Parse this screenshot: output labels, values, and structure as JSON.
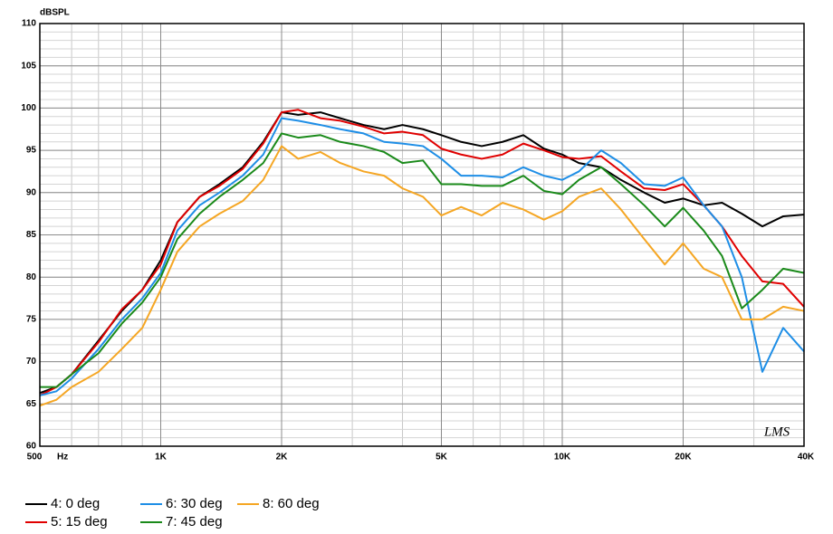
{
  "chart_data": {
    "type": "line",
    "y_label": "dBSPL",
    "x_label": "Hz",
    "annotation": "LMS",
    "x_scale": "log",
    "grid": true,
    "minor_grid": true,
    "legend": "bottom",
    "xlim": [
      500,
      40000
    ],
    "ylim": [
      60,
      110
    ],
    "xticks": [
      {
        "value": 500,
        "label": "500"
      },
      {
        "value": 1000,
        "label": "1K"
      },
      {
        "value": 2000,
        "label": "2K"
      },
      {
        "value": 5000,
        "label": "5K"
      },
      {
        "value": 10000,
        "label": "10K"
      },
      {
        "value": 20000,
        "label": "20K"
      },
      {
        "value": 40000,
        "label": "40K"
      }
    ],
    "yticks": [
      60,
      65,
      70,
      75,
      80,
      85,
      90,
      95,
      100,
      105,
      110
    ],
    "x": [
      500,
      550,
      600,
      700,
      800,
      900,
      1000,
      1100,
      1250,
      1400,
      1600,
      1800,
      2000,
      2200,
      2500,
      2800,
      3200,
      3600,
      4000,
      4500,
      5000,
      5600,
      6300,
      7100,
      8000,
      9000,
      10000,
      11000,
      12500,
      14000,
      16000,
      18000,
      20000,
      22500,
      25000,
      28000,
      31500,
      35500,
      40000
    ],
    "series": [
      {
        "name": "4: 0 deg",
        "color": "#000000",
        "values": [
          66.3,
          67,
          68.5,
          72.5,
          76,
          78.5,
          82,
          86.5,
          89.5,
          91,
          93,
          96,
          99.5,
          99.2,
          99.5,
          98.8,
          98,
          97.5,
          98,
          97.5,
          96.8,
          96,
          95.5,
          96,
          96.8,
          95.2,
          94.5,
          93.5,
          93,
          91.5,
          90,
          88.8,
          89.3,
          88.5,
          88.8,
          87.5,
          86,
          87.2,
          87.4
        ]
      },
      {
        "name": "5: 15 deg",
        "color": "#e00000",
        "values": [
          66,
          67,
          68.5,
          72.3,
          76.2,
          78.5,
          81.5,
          86.5,
          89.5,
          90.8,
          92.8,
          95.8,
          99.5,
          99.8,
          98.8,
          98.5,
          97.8,
          97,
          97.2,
          96.8,
          95.2,
          94.5,
          94,
          94.5,
          95.8,
          95,
          94.2,
          94,
          94.3,
          92.5,
          90.5,
          90.3,
          91,
          88.5,
          86,
          82.5,
          79.5,
          79.2,
          76.5
        ]
      },
      {
        "name": "6: 30 deg",
        "color": "#1e8ee6",
        "values": [
          66,
          66.5,
          68,
          71.5,
          75,
          77.5,
          80.5,
          85.5,
          88.5,
          90,
          92,
          94.5,
          98.8,
          98.5,
          98,
          97.5,
          97,
          96,
          95.8,
          95.5,
          94,
          92,
          92,
          91.8,
          93,
          92,
          91.5,
          92.5,
          95,
          93.5,
          91,
          90.8,
          91.8,
          88.5,
          86,
          80,
          68.8,
          74,
          71.2
        ]
      },
      {
        "name": "7: 45 deg",
        "color": "#1a8a1a",
        "values": [
          67,
          67,
          68.5,
          71,
          74.5,
          77,
          80,
          84.5,
          87.5,
          89.5,
          91.5,
          93.5,
          97,
          96.5,
          96.8,
          96,
          95.5,
          94.8,
          93.5,
          93.8,
          91,
          91,
          90.8,
          90.8,
          92,
          90.2,
          89.8,
          91.5,
          93,
          91,
          88.5,
          86,
          88.2,
          85.5,
          82.5,
          76.3,
          78.5,
          81,
          80.5
        ]
      },
      {
        "name": "8: 60 deg",
        "color": "#f5a623",
        "values": [
          64.8,
          65.5,
          67,
          68.8,
          71.5,
          74,
          78.5,
          83,
          86,
          87.5,
          89,
          91.5,
          95.5,
          94,
          94.8,
          93.5,
          92.5,
          92,
          90.5,
          89.5,
          87.3,
          88.3,
          87.3,
          88.8,
          88,
          86.8,
          87.8,
          89.5,
          90.5,
          88,
          84.5,
          81.5,
          84,
          81,
          80,
          75,
          75,
          76.5,
          76
        ]
      }
    ]
  }
}
